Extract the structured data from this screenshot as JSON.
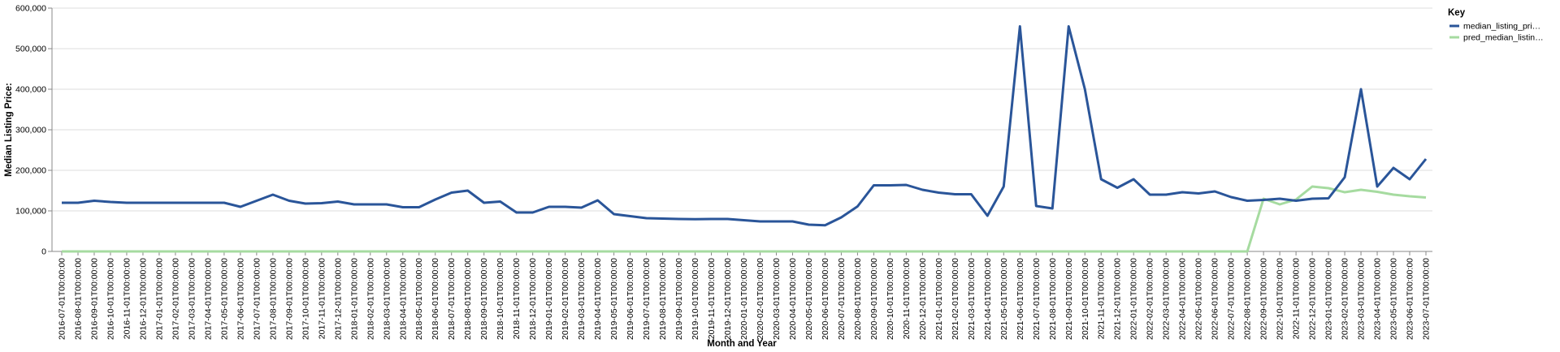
{
  "chart_data": {
    "type": "line",
    "x_label": "Month and Year",
    "y_label": "Median Listing Price:",
    "legend_title": "Key",
    "legend_position": "right",
    "grid": true,
    "categories": [
      "2016-07-01T00:00:00",
      "2016-08-01T00:00:00",
      "2016-09-01T00:00:00",
      "2016-10-01T00:00:00",
      "2016-11-01T00:00:00",
      "2016-12-01T00:00:00",
      "2017-01-01T00:00:00",
      "2017-02-01T00:00:00",
      "2017-03-01T00:00:00",
      "2017-04-01T00:00:00",
      "2017-05-01T00:00:00",
      "2017-06-01T00:00:00",
      "2017-07-01T00:00:00",
      "2017-08-01T00:00:00",
      "2017-09-01T00:00:00",
      "2017-10-01T00:00:00",
      "2017-11-01T00:00:00",
      "2017-12-01T00:00:00",
      "2018-01-01T00:00:00",
      "2018-02-01T00:00:00",
      "2018-03-01T00:00:00",
      "2018-04-01T00:00:00",
      "2018-05-01T00:00:00",
      "2018-06-01T00:00:00",
      "2018-07-01T00:00:00",
      "2018-08-01T00:00:00",
      "2018-09-01T00:00:00",
      "2018-10-01T00:00:00",
      "2018-11-01T00:00:00",
      "2018-12-01T00:00:00",
      "2019-01-01T00:00:00",
      "2019-02-01T00:00:00",
      "2019-03-01T00:00:00",
      "2019-04-01T00:00:00",
      "2019-05-01T00:00:00",
      "2019-06-01T00:00:00",
      "2019-07-01T00:00:00",
      "2019-08-01T00:00:00",
      "2019-09-01T00:00:00",
      "2019-10-01T00:00:00",
      "2019-11-01T00:00:00",
      "2019-12-01T00:00:00",
      "2020-01-01T00:00:00",
      "2020-02-01T00:00:00",
      "2020-03-01T00:00:00",
      "2020-04-01T00:00:00",
      "2020-05-01T00:00:00",
      "2020-06-01T00:00:00",
      "2020-07-01T00:00:00",
      "2020-08-01T00:00:00",
      "2020-09-01T00:00:00",
      "2020-10-01T00:00:00",
      "2020-11-01T00:00:00",
      "2020-12-01T00:00:00",
      "2021-01-01T00:00:00",
      "2021-02-01T00:00:00",
      "2021-03-01T00:00:00",
      "2021-04-01T00:00:00",
      "2021-05-01T00:00:00",
      "2021-06-01T00:00:00",
      "2021-07-01T00:00:00",
      "2021-08-01T00:00:00",
      "2021-09-01T00:00:00",
      "2021-10-01T00:00:00",
      "2021-11-01T00:00:00",
      "2021-12-01T00:00:00",
      "2022-01-01T00:00:00",
      "2022-02-01T00:00:00",
      "2022-03-01T00:00:00",
      "2022-04-01T00:00:00",
      "2022-05-01T00:00:00",
      "2022-06-01T00:00:00",
      "2022-07-01T00:00:00",
      "2022-08-01T00:00:00",
      "2022-09-01T00:00:00",
      "2022-10-01T00:00:00",
      "2022-11-01T00:00:00",
      "2022-12-01T00:00:00",
      "2023-01-01T00:00:00",
      "2023-02-01T00:00:00",
      "2023-03-01T00:00:00",
      "2023-04-01T00:00:00",
      "2023-05-01T00:00:00",
      "2023-06-01T00:00:00",
      "2023-07-01T00:00:00"
    ],
    "series": [
      {
        "name": "median_listing_pri…",
        "color": "#2a5599",
        "values": [
          120000,
          120000,
          125000,
          122000,
          120000,
          120000,
          120000,
          120000,
          120000,
          120000,
          120000,
          110000,
          125000,
          140000,
          125000,
          118000,
          119000,
          123000,
          116000,
          116000,
          116000,
          109000,
          109000,
          128000,
          145000,
          150000,
          120000,
          123000,
          96000,
          96000,
          110000,
          110000,
          108000,
          126000,
          92000,
          87000,
          82000,
          81000,
          80000,
          79500,
          80000,
          80000,
          77000,
          74000,
          74000,
          74000,
          66000,
          64500,
          84000,
          111000,
          163000,
          163000,
          164000,
          152000,
          145000,
          141000,
          141000,
          88000,
          160000,
          555000,
          112000,
          106000,
          555000,
          400000,
          178000,
          157000,
          178000,
          140000,
          140000,
          146000,
          143000,
          148000,
          134000,
          125000,
          127000,
          130000,
          125000,
          130000,
          131000,
          183000,
          400000,
          160000,
          206000,
          178000,
          228000
        ]
      },
      {
        "name": "pred_median_listin…",
        "color": "#a6dba0",
        "values": [
          0,
          0,
          0,
          0,
          0,
          0,
          0,
          0,
          0,
          0,
          0,
          0,
          0,
          0,
          0,
          0,
          0,
          0,
          0,
          0,
          0,
          0,
          0,
          0,
          0,
          0,
          0,
          0,
          0,
          0,
          0,
          0,
          0,
          0,
          0,
          0,
          0,
          0,
          0,
          0,
          0,
          0,
          0,
          0,
          0,
          0,
          0,
          0,
          0,
          0,
          0,
          0,
          0,
          0,
          0,
          0,
          0,
          0,
          0,
          0,
          0,
          0,
          0,
          0,
          0,
          0,
          0,
          0,
          0,
          0,
          0,
          0,
          0,
          0,
          130000,
          116000,
          128000,
          160000,
          156000,
          146000,
          152000,
          147000,
          140000,
          136000,
          133000
        ]
      }
    ],
    "ylim": [
      0,
      600000
    ],
    "yticks": [
      0,
      {
        "value": 100000,
        "label": "100,000"
      },
      {
        "value": 200000,
        "label": "200,000"
      },
      {
        "value": 300000,
        "label": "300,000"
      },
      {
        "value": 400000,
        "label": "400,000"
      },
      {
        "value": 500000,
        "label": "500,000"
      },
      {
        "value": 600000,
        "label": "600,000"
      }
    ]
  }
}
